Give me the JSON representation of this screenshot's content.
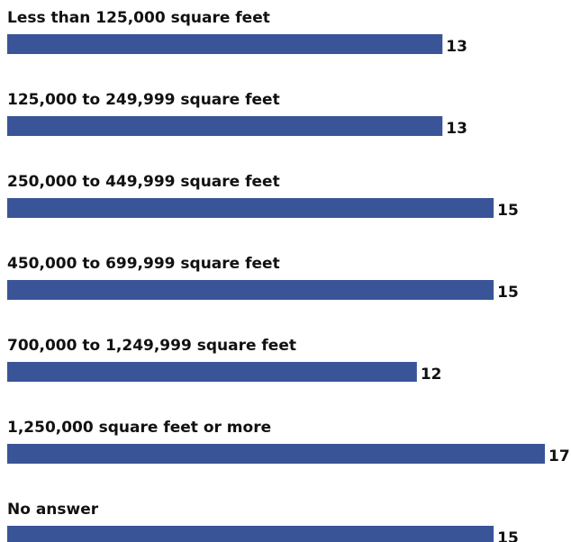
{
  "chart_data": {
    "type": "bar",
    "orientation": "horizontal",
    "categories": [
      "Less than 125,000 square feet",
      "125,000 to 249,999 square feet",
      "250,000 to 449,999 square feet",
      "450,000 to 699,999 square feet",
      "700,000 to 1,249,999 square feet",
      "1,250,000 square feet or more",
      "No answer"
    ],
    "values": [
      13,
      13,
      15,
      15,
      12,
      17,
      15
    ],
    "color": "#3a5498",
    "xlim": [
      -4,
      17
    ]
  }
}
